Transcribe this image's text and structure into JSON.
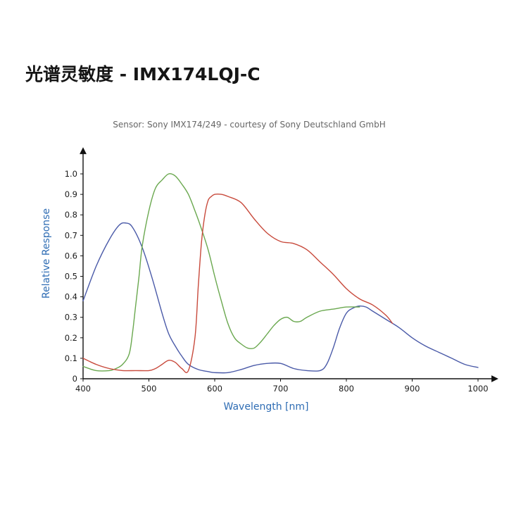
{
  "page": {
    "title": "光谱灵敏度 - IMX174LQJ-C"
  },
  "chart_data": {
    "type": "line",
    "title": "光谱灵敏度 - IMX174LQJ-C",
    "subtitle": "Sensor: Sony IMX174/249 - courtesy of Sony Deutschland GmbH",
    "xlabel": "Wavelength [nm]",
    "ylabel": "Relative Response",
    "xlim": [
      400,
      1000
    ],
    "ylim": [
      0,
      1.0
    ],
    "x_ticks": [
      "400",
      "500",
      "600",
      "700",
      "800",
      "900",
      "1000"
    ],
    "y_ticks": [
      "0",
      "0.1",
      "0.2",
      "0.3",
      "0.4",
      "0.5",
      "0.6",
      "0.7",
      "0.8",
      "0.9",
      "1.0"
    ],
    "grid": false,
    "legend": "none",
    "series": [
      {
        "color": "#4a5aa8",
        "x": [
          400,
          420,
          440,
          455,
          465,
          475,
          490,
          505,
          520,
          530,
          540,
          550,
          560,
          575,
          590,
          600,
          620,
          640,
          660,
          680,
          700,
          720,
          740,
          760,
          770,
          780,
          790,
          800,
          810,
          820,
          830,
          840,
          860,
          880,
          900,
          920,
          940,
          960,
          980,
          1000
        ],
        "y": [
          0.38,
          0.55,
          0.68,
          0.75,
          0.76,
          0.74,
          0.64,
          0.49,
          0.32,
          0.22,
          0.16,
          0.11,
          0.07,
          0.045,
          0.035,
          0.03,
          0.03,
          0.045,
          0.065,
          0.075,
          0.075,
          0.05,
          0.04,
          0.04,
          0.07,
          0.15,
          0.25,
          0.32,
          0.345,
          0.355,
          0.35,
          0.33,
          0.29,
          0.25,
          0.2,
          0.16,
          0.13,
          0.1,
          0.07,
          0.055
        ]
      },
      {
        "color": "#6aa84f",
        "x": [
          400,
          420,
          440,
          450,
          460,
          470,
          475,
          480,
          485,
          490,
          500,
          510,
          520,
          530,
          540,
          550,
          560,
          570,
          580,
          590,
          600,
          610,
          620,
          630,
          640,
          650,
          660,
          670,
          680,
          690,
          700,
          710,
          720,
          730,
          740,
          760,
          780,
          800,
          820
        ],
        "y": [
          0.06,
          0.04,
          0.04,
          0.05,
          0.07,
          0.12,
          0.22,
          0.36,
          0.5,
          0.65,
          0.82,
          0.93,
          0.97,
          1.0,
          0.99,
          0.95,
          0.9,
          0.82,
          0.73,
          0.63,
          0.5,
          0.38,
          0.27,
          0.2,
          0.17,
          0.15,
          0.15,
          0.18,
          0.22,
          0.26,
          0.29,
          0.3,
          0.28,
          0.28,
          0.3,
          0.33,
          0.34,
          0.35,
          0.35
        ]
      },
      {
        "color": "#c84a3c",
        "x": [
          400,
          420,
          440,
          460,
          480,
          500,
          510,
          520,
          530,
          540,
          550,
          560,
          570,
          575,
          580,
          585,
          590,
          595,
          600,
          610,
          620,
          640,
          660,
          680,
          700,
          720,
          740,
          760,
          780,
          800,
          820,
          840,
          860,
          870
        ],
        "y": [
          0.1,
          0.07,
          0.05,
          0.04,
          0.04,
          0.04,
          0.05,
          0.07,
          0.09,
          0.08,
          0.05,
          0.04,
          0.2,
          0.45,
          0.67,
          0.8,
          0.87,
          0.89,
          0.9,
          0.9,
          0.89,
          0.86,
          0.78,
          0.71,
          0.67,
          0.66,
          0.63,
          0.57,
          0.51,
          0.44,
          0.39,
          0.36,
          0.31,
          0.27
        ]
      }
    ]
  }
}
